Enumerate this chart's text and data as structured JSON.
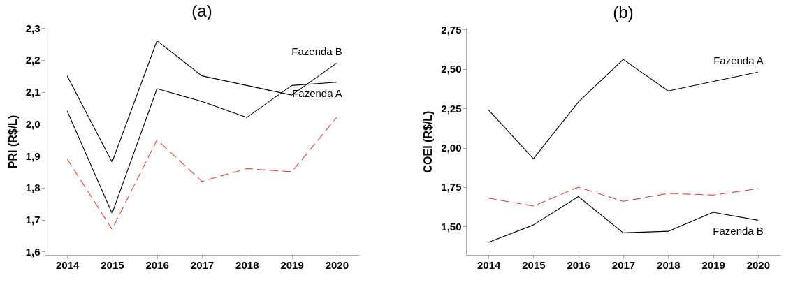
{
  "chart_data": [
    {
      "type": "line",
      "title": "(a)",
      "ylabel": "PRI (R$/L)",
      "categories": [
        "2014",
        "2015",
        "2016",
        "2017",
        "2018",
        "2019",
        "2020"
      ],
      "ylim": [
        1.59,
        2.3
      ],
      "yticks": [
        {
          "value": 1.6,
          "label": "1,6"
        },
        {
          "value": 1.7,
          "label": "1,7"
        },
        {
          "value": 1.8,
          "label": "1,8"
        },
        {
          "value": 1.9,
          "label": "1,9"
        },
        {
          "value": 2.0,
          "label": "2,0"
        },
        {
          "value": 2.1,
          "label": "2,1"
        },
        {
          "value": 2.2,
          "label": "2,2"
        },
        {
          "value": 2.3,
          "label": "2,3"
        }
      ],
      "grid": false,
      "series": [
        {
          "name": "Fazenda B",
          "color": "#000000",
          "line_style": "solid",
          "values": [
            2.15,
            1.88,
            2.26,
            2.15,
            2.12,
            2.09,
            2.19
          ]
        },
        {
          "name": "Fazenda A",
          "color": "#000000",
          "line_style": "solid",
          "values": [
            2.04,
            1.72,
            2.11,
            2.07,
            2.02,
            2.12,
            2.13
          ]
        },
        {
          "color": "#e8413c",
          "line_style": "dashed",
          "values": [
            1.89,
            1.67,
            1.95,
            1.82,
            1.86,
            1.85,
            2.02
          ]
        }
      ]
    },
    {
      "type": "line",
      "title": "(b)",
      "ylabel": "COEI (R$/L)",
      "categories": [
        "2014",
        "2015",
        "2016",
        "2017",
        "2018",
        "2019",
        "2020"
      ],
      "ylim": [
        1.32,
        2.76
      ],
      "yticks": [
        {
          "value": 1.5,
          "label": "1,50"
        },
        {
          "value": 1.75,
          "label": "1,75"
        },
        {
          "value": 2.0,
          "label": "2,00"
        },
        {
          "value": 2.25,
          "label": "2,25"
        },
        {
          "value": 2.5,
          "label": "2,50"
        },
        {
          "value": 2.75,
          "label": "2,75"
        }
      ],
      "grid": false,
      "series": [
        {
          "name": "Fazenda A",
          "color": "#000000",
          "line_style": "solid",
          "values": [
            2.24,
            1.93,
            2.29,
            2.56,
            2.36,
            2.42,
            2.48
          ]
        },
        {
          "name": "Fazenda B",
          "color": "#000000",
          "line_style": "solid",
          "values": [
            1.4,
            1.51,
            1.69,
            1.46,
            1.47,
            1.59,
            1.54
          ]
        },
        {
          "color": "#e8413c",
          "line_style": "dashed",
          "values": [
            1.68,
            1.63,
            1.75,
            1.66,
            1.71,
            1.7,
            1.74
          ]
        }
      ]
    }
  ]
}
